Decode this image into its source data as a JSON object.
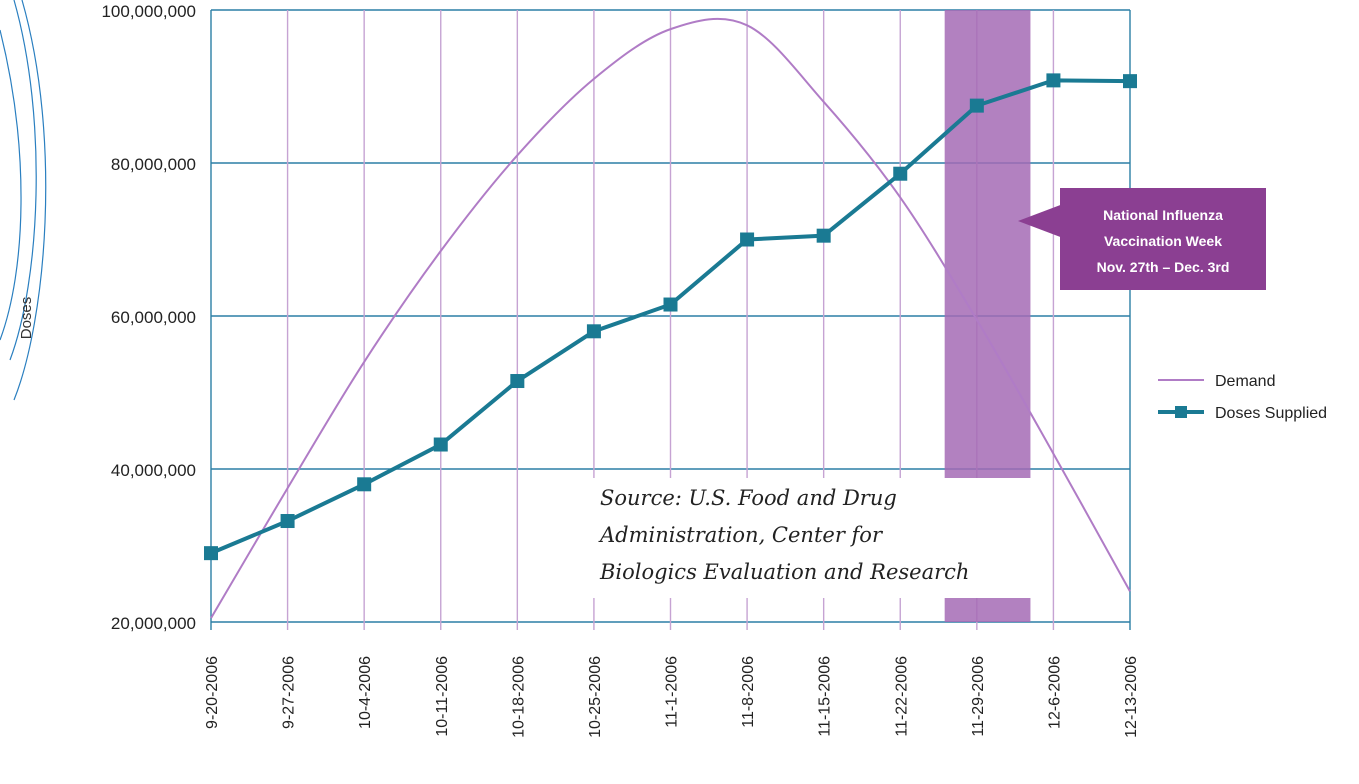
{
  "chart_data": {
    "type": "line",
    "title": "",
    "xlabel": "",
    "ylabel": "Doses",
    "categories": [
      "9-20-2006",
      "9-27-2006",
      "10-4-2006",
      "10-11-2006",
      "10-18-2006",
      "10-25-2006",
      "11-1-2006",
      "11-8-2006",
      "11-15-2006",
      "11-22-2006",
      "11-29-2006",
      "12-6-2006",
      "12-13-2006"
    ],
    "y_ticks": [
      "20,000,000",
      "40,000,000",
      "60,000,000",
      "80,000,000",
      "100,000,000"
    ],
    "ylim": [
      20000000,
      100000000
    ],
    "grid": true,
    "legend_position": "right",
    "series": [
      {
        "name": "Demand",
        "style": "smooth-line",
        "color": "#b07cc6",
        "values": [
          20500000,
          37500000,
          54000000,
          68500000,
          81000000,
          91000000,
          97500000,
          98000000,
          88000000,
          75500000,
          59500000,
          42000000,
          24000000
        ]
      },
      {
        "name": "Doses Supplied",
        "style": "line-square-markers",
        "color": "#1a7a93",
        "values": [
          29000000,
          33200000,
          38000000,
          43200000,
          51500000,
          58000000,
          61500000,
          70000000,
          70500000,
          78600000,
          87500000,
          90800000,
          90700000
        ]
      }
    ],
    "annotations": {
      "callout": {
        "lines": [
          "National Influenza",
          "Vaccination Week",
          "Nov. 27th – Dec. 3rd"
        ],
        "color": "#8b3f92"
      },
      "shaded_band": {
        "from_category": "11-22-2006",
        "to_category": "11-29-2006",
        "color": "#a56bb5"
      },
      "source": [
        "Source: U.S. Food and Drug",
        "Administration, Center for",
        "Biologics Evaluation and Research"
      ]
    }
  }
}
